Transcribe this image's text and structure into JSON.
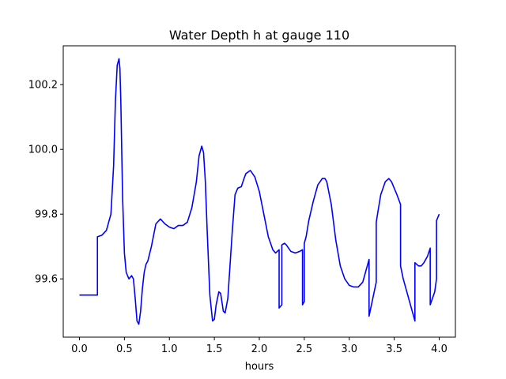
{
  "chart_data": {
    "type": "line",
    "title": "Water Depth h at gauge 110",
    "xlabel": "hours",
    "ylabel": "",
    "xlim": [
      -0.18,
      4.18
    ],
    "ylim": [
      99.42,
      100.32
    ],
    "xticks": [
      0.0,
      0.5,
      1.0,
      1.5,
      2.0,
      2.5,
      3.0,
      3.5,
      4.0
    ],
    "xtick_labels": [
      "0.0",
      "0.5",
      "1.0",
      "1.5",
      "2.0",
      "2.5",
      "3.0",
      "3.5",
      "4.0"
    ],
    "yticks": [
      99.6,
      99.8,
      100.0,
      100.2
    ],
    "ytick_labels": [
      "99.6",
      "99.8",
      "100.0",
      "100.2"
    ],
    "grid": false,
    "series": [
      {
        "color": "#0000ff",
        "x": [
          0.0,
          0.2,
          0.2,
          0.25,
          0.3,
          0.35,
          0.38,
          0.4,
          0.42,
          0.44,
          0.45,
          0.46,
          0.48,
          0.5,
          0.52,
          0.55,
          0.58,
          0.6,
          0.62,
          0.64,
          0.66,
          0.68,
          0.7,
          0.72,
          0.74,
          0.76,
          0.8,
          0.85,
          0.9,
          0.95,
          1.0,
          1.05,
          1.1,
          1.15,
          1.2,
          1.25,
          1.3,
          1.33,
          1.36,
          1.38,
          1.4,
          1.42,
          1.45,
          1.48,
          1.5,
          1.52,
          1.55,
          1.57,
          1.6,
          1.62,
          1.65,
          1.7,
          1.73,
          1.76,
          1.8,
          1.83,
          1.85,
          1.9,
          1.95,
          2.0,
          2.05,
          2.1,
          2.15,
          2.18,
          2.2,
          2.22,
          2.22,
          2.25,
          2.25,
          2.28,
          2.3,
          2.35,
          2.4,
          2.45,
          2.48,
          2.48,
          2.5,
          2.5,
          2.52,
          2.55,
          2.6,
          2.65,
          2.7,
          2.73,
          2.75,
          2.8,
          2.85,
          2.9,
          2.95,
          3.0,
          3.05,
          3.1,
          3.15,
          3.18,
          3.2,
          3.22,
          3.22,
          3.3,
          3.3,
          3.32,
          3.35,
          3.4,
          3.44,
          3.47,
          3.5,
          3.53,
          3.57,
          3.57,
          3.6,
          3.65,
          3.7,
          3.73,
          3.73,
          3.77,
          3.8,
          3.83,
          3.87,
          3.9,
          3.9,
          3.95,
          3.97,
          3.97,
          4.0
        ],
        "y": [
          99.55,
          99.55,
          99.73,
          99.735,
          99.75,
          99.8,
          99.95,
          100.15,
          100.26,
          100.28,
          100.25,
          100.15,
          99.85,
          99.68,
          99.62,
          99.6,
          99.61,
          99.6,
          99.54,
          99.47,
          99.46,
          99.5,
          99.57,
          99.62,
          99.645,
          99.655,
          99.7,
          99.77,
          99.785,
          99.77,
          99.76,
          99.755,
          99.765,
          99.765,
          99.775,
          99.82,
          99.9,
          99.98,
          100.01,
          99.99,
          99.9,
          99.75,
          99.55,
          99.47,
          99.475,
          99.52,
          99.56,
          99.555,
          99.5,
          99.495,
          99.54,
          99.75,
          99.86,
          99.88,
          99.885,
          99.91,
          99.925,
          99.935,
          99.915,
          99.87,
          99.8,
          99.73,
          99.69,
          99.68,
          99.685,
          99.69,
          99.51,
          99.52,
          99.705,
          99.71,
          99.705,
          99.685,
          99.68,
          99.685,
          99.69,
          99.52,
          99.53,
          99.71,
          99.73,
          99.78,
          99.84,
          99.89,
          99.91,
          99.91,
          99.9,
          99.83,
          99.72,
          99.64,
          99.6,
          99.58,
          99.575,
          99.575,
          99.59,
          99.62,
          99.64,
          99.66,
          99.485,
          99.59,
          99.775,
          99.81,
          99.86,
          99.9,
          99.91,
          99.9,
          99.88,
          99.86,
          99.83,
          99.64,
          99.6,
          99.55,
          99.5,
          99.47,
          99.65,
          99.64,
          99.64,
          99.65,
          99.67,
          99.695,
          99.52,
          99.56,
          99.6,
          99.78,
          99.8
        ]
      }
    ]
  }
}
